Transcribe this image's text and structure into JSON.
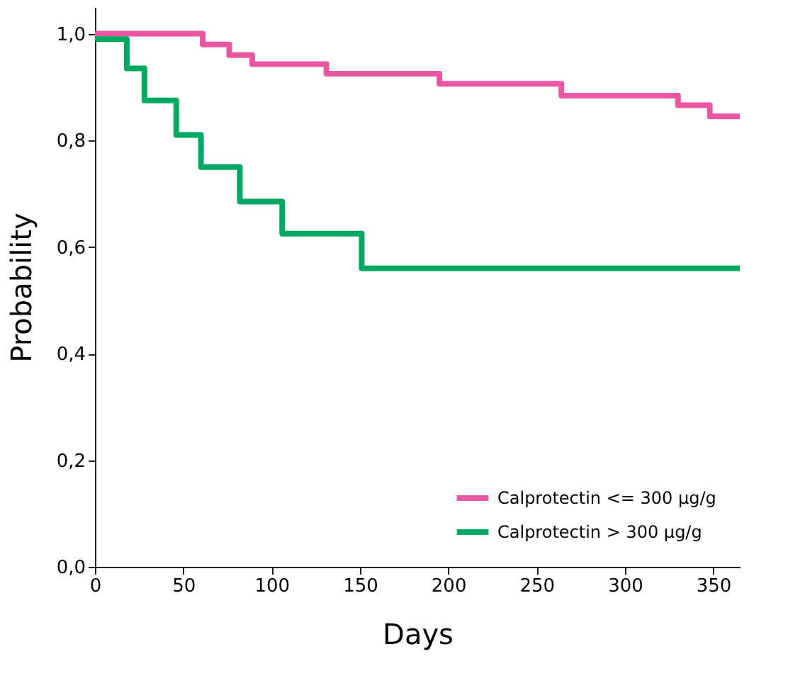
{
  "chart_data": {
    "type": "step",
    "xlabel": "Days",
    "ylabel": "Probability",
    "xlim": [
      0,
      365
    ],
    "ylim": [
      0,
      1.05
    ],
    "xticks": [
      0,
      50,
      100,
      150,
      200,
      250,
      300,
      350
    ],
    "yticks": [
      {
        "value": 0,
        "label": "0,0"
      },
      {
        "value": 0.2,
        "label": "0,2"
      },
      {
        "value": 0.4,
        "label": "0,4"
      },
      {
        "value": 0.6,
        "label": "0,6"
      },
      {
        "value": 0.8,
        "label": "0,8"
      },
      {
        "value": 1.0,
        "label": "1,0"
      }
    ],
    "grid": false,
    "legend": "bottom right",
    "marker": "none",
    "line_style": "solid",
    "series": [
      {
        "name": "Calprotectin <= 300 µg/g",
        "color": "#e8579f",
        "x": [
          0,
          61,
          76,
          89,
          131,
          195,
          264,
          330,
          348,
          365
        ],
        "values": [
          1.0,
          0.98,
          0.96,
          0.943,
          0.925,
          0.906,
          0.884,
          0.866,
          0.845,
          0.845
        ]
      },
      {
        "name": "Calprotectin > 300 µg/g",
        "color": "#00a862",
        "x": [
          0,
          18,
          28,
          46,
          60,
          82,
          106,
          151,
          365
        ],
        "values": [
          0.99,
          0.935,
          0.875,
          0.81,
          0.75,
          0.685,
          0.625,
          0.56,
          0.56
        ]
      }
    ]
  }
}
